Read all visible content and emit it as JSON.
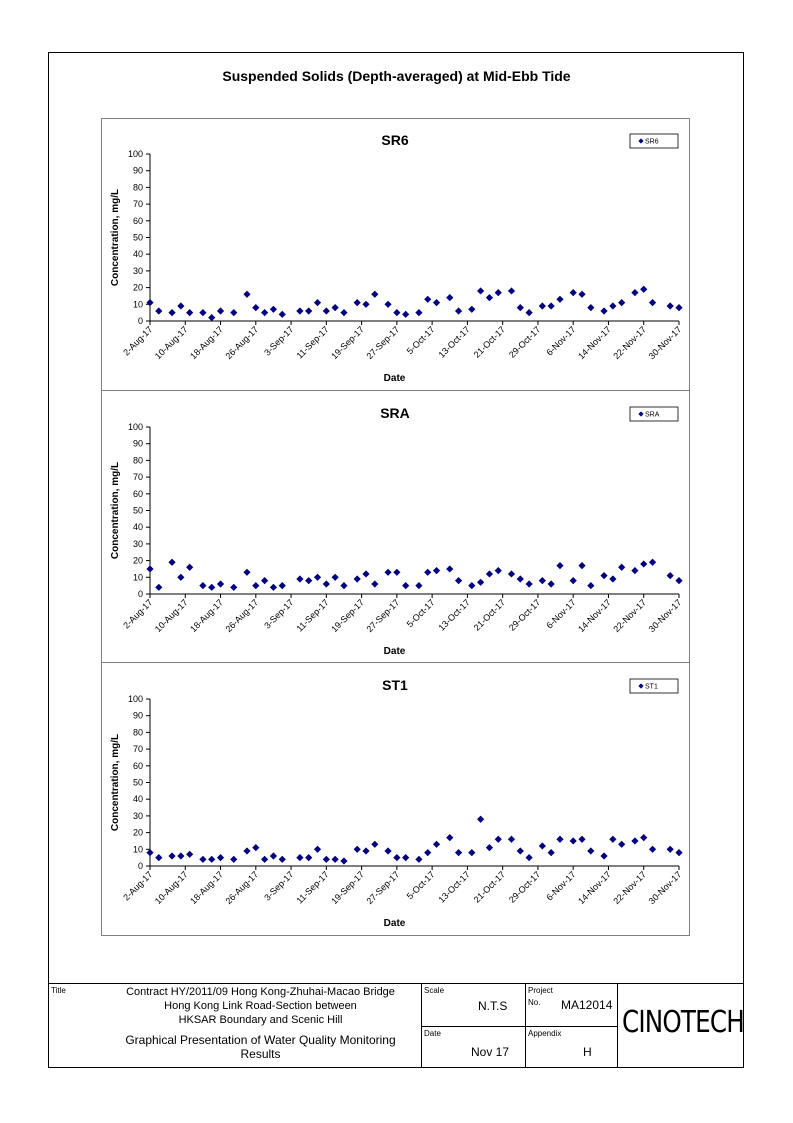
{
  "page_title": "Suspended Solids (Depth-averaged) at Mid-Ebb Tide",
  "footer": {
    "title_label": "Title",
    "title_lines": [
      "Contract HY/2011/09 Hong Kong-Zhuhai-Macao Bridge",
      "Hong Kong Link Road-Section between",
      "HKSAR Boundary and Scenic Hill"
    ],
    "subtitle_lines": [
      "Graphical Presentation of Water Quality Monitoring",
      "Results"
    ],
    "scale_label": "Scale",
    "scale_value": "N.T.S",
    "project_label": "Project",
    "no_label": "No.",
    "project_no": "MA12014",
    "date_label": "Date",
    "date_value": "Nov 17",
    "appendix_label": "Appendix",
    "appendix_value": "H",
    "logo_text": "CINOTECH"
  },
  "chart_data": [
    {
      "type": "scatter",
      "title": "SR6",
      "xlabel": "Date",
      "ylabel": "Concentration, mg/L",
      "ylim": [
        0,
        100
      ],
      "yticks": [
        0,
        10,
        20,
        30,
        40,
        50,
        60,
        70,
        80,
        90,
        100
      ],
      "xlim": [
        "2-Aug-17",
        "30-Nov-17"
      ],
      "xticks": [
        "2-Aug-17",
        "10-Aug-17",
        "18-Aug-17",
        "26-Aug-17",
        "3-Sep-17",
        "11-Sep-17",
        "19-Sep-17",
        "27-Sep-17",
        "5-Oct-17",
        "13-Oct-17",
        "21-Oct-17",
        "29-Oct-17",
        "6-Nov-17",
        "14-Nov-17",
        "22-Nov-17",
        "30-Nov-17"
      ],
      "legend_position": "top-right",
      "color": "#000080",
      "series": [
        {
          "name": "SR6",
          "points": [
            [
              "2-Aug-17",
              11
            ],
            [
              "4-Aug-17",
              6
            ],
            [
              "7-Aug-17",
              5
            ],
            [
              "9-Aug-17",
              9
            ],
            [
              "11-Aug-17",
              5
            ],
            [
              "14-Aug-17",
              5
            ],
            [
              "16-Aug-17",
              2
            ],
            [
              "18-Aug-17",
              6
            ],
            [
              "21-Aug-17",
              5
            ],
            [
              "24-Aug-17",
              16
            ],
            [
              "26-Aug-17",
              8
            ],
            [
              "28-Aug-17",
              5
            ],
            [
              "30-Aug-17",
              7
            ],
            [
              "1-Sep-17",
              4
            ],
            [
              "5-Sep-17",
              6
            ],
            [
              "7-Sep-17",
              6
            ],
            [
              "9-Sep-17",
              11
            ],
            [
              "11-Sep-17",
              6
            ],
            [
              "13-Sep-17",
              8
            ],
            [
              "15-Sep-17",
              5
            ],
            [
              "18-Sep-17",
              11
            ],
            [
              "20-Sep-17",
              10
            ],
            [
              "22-Sep-17",
              16
            ],
            [
              "25-Sep-17",
              10
            ],
            [
              "27-Sep-17",
              5
            ],
            [
              "29-Sep-17",
              4
            ],
            [
              "2-Oct-17",
              5
            ],
            [
              "4-Oct-17",
              13
            ],
            [
              "6-Oct-17",
              11
            ],
            [
              "9-Oct-17",
              14
            ],
            [
              "11-Oct-17",
              6
            ],
            [
              "14-Oct-17",
              7
            ],
            [
              "16-Oct-17",
              18
            ],
            [
              "18-Oct-17",
              14
            ],
            [
              "20-Oct-17",
              17
            ],
            [
              "23-Oct-17",
              18
            ],
            [
              "25-Oct-17",
              8
            ],
            [
              "27-Oct-17",
              5
            ],
            [
              "30-Oct-17",
              9
            ],
            [
              "1-Nov-17",
              9
            ],
            [
              "3-Nov-17",
              13
            ],
            [
              "6-Nov-17",
              17
            ],
            [
              "8-Nov-17",
              16
            ],
            [
              "10-Nov-17",
              8
            ],
            [
              "13-Nov-17",
              6
            ],
            [
              "15-Nov-17",
              9
            ],
            [
              "17-Nov-17",
              11
            ],
            [
              "20-Nov-17",
              17
            ],
            [
              "22-Nov-17",
              19
            ],
            [
              "24-Nov-17",
              11
            ],
            [
              "28-Nov-17",
              9
            ],
            [
              "30-Nov-17",
              8
            ]
          ]
        }
      ]
    },
    {
      "type": "scatter",
      "title": "SRA",
      "xlabel": "Date",
      "ylabel": "Concentration, mg/L",
      "ylim": [
        0,
        100
      ],
      "yticks": [
        0,
        10,
        20,
        30,
        40,
        50,
        60,
        70,
        80,
        90,
        100
      ],
      "xlim": [
        "2-Aug-17",
        "30-Nov-17"
      ],
      "xticks": [
        "2-Aug-17",
        "10-Aug-17",
        "18-Aug-17",
        "26-Aug-17",
        "3-Sep-17",
        "11-Sep-17",
        "19-Sep-17",
        "27-Sep-17",
        "5-Oct-17",
        "13-Oct-17",
        "21-Oct-17",
        "29-Oct-17",
        "6-Nov-17",
        "14-Nov-17",
        "22-Nov-17",
        "30-Nov-17"
      ],
      "legend_position": "top-right",
      "color": "#000080",
      "series": [
        {
          "name": "SRA",
          "points": [
            [
              "2-Aug-17",
              15
            ],
            [
              "4-Aug-17",
              4
            ],
            [
              "7-Aug-17",
              19
            ],
            [
              "9-Aug-17",
              10
            ],
            [
              "11-Aug-17",
              16
            ],
            [
              "14-Aug-17",
              5
            ],
            [
              "16-Aug-17",
              4
            ],
            [
              "18-Aug-17",
              6
            ],
            [
              "21-Aug-17",
              4
            ],
            [
              "24-Aug-17",
              13
            ],
            [
              "26-Aug-17",
              5
            ],
            [
              "28-Aug-17",
              8
            ],
            [
              "30-Aug-17",
              4
            ],
            [
              "1-Sep-17",
              5
            ],
            [
              "5-Sep-17",
              9
            ],
            [
              "7-Sep-17",
              8
            ],
            [
              "9-Sep-17",
              10
            ],
            [
              "11-Sep-17",
              6
            ],
            [
              "13-Sep-17",
              10
            ],
            [
              "15-Sep-17",
              5
            ],
            [
              "18-Sep-17",
              9
            ],
            [
              "20-Sep-17",
              12
            ],
            [
              "22-Sep-17",
              6
            ],
            [
              "25-Sep-17",
              13
            ],
            [
              "27-Sep-17",
              13
            ],
            [
              "29-Sep-17",
              5
            ],
            [
              "2-Oct-17",
              5
            ],
            [
              "4-Oct-17",
              13
            ],
            [
              "6-Oct-17",
              14
            ],
            [
              "9-Oct-17",
              15
            ],
            [
              "11-Oct-17",
              8
            ],
            [
              "14-Oct-17",
              5
            ],
            [
              "16-Oct-17",
              7
            ],
            [
              "18-Oct-17",
              12
            ],
            [
              "20-Oct-17",
              14
            ],
            [
              "23-Oct-17",
              12
            ],
            [
              "25-Oct-17",
              9
            ],
            [
              "27-Oct-17",
              6
            ],
            [
              "30-Oct-17",
              8
            ],
            [
              "1-Nov-17",
              6
            ],
            [
              "3-Nov-17",
              17
            ],
            [
              "6-Nov-17",
              8
            ],
            [
              "8-Nov-17",
              17
            ],
            [
              "10-Nov-17",
              5
            ],
            [
              "13-Nov-17",
              11
            ],
            [
              "15-Nov-17",
              9
            ],
            [
              "17-Nov-17",
              16
            ],
            [
              "20-Nov-17",
              14
            ],
            [
              "22-Nov-17",
              18
            ],
            [
              "24-Nov-17",
              19
            ],
            [
              "28-Nov-17",
              11
            ],
            [
              "30-Nov-17",
              8
            ]
          ]
        }
      ]
    },
    {
      "type": "scatter",
      "title": "ST1",
      "xlabel": "Date",
      "ylabel": "Concentration, mg/L",
      "ylim": [
        0,
        100
      ],
      "yticks": [
        0,
        10,
        20,
        30,
        40,
        50,
        60,
        70,
        80,
        90,
        100
      ],
      "xlim": [
        "2-Aug-17",
        "30-Nov-17"
      ],
      "xticks": [
        "2-Aug-17",
        "10-Aug-17",
        "18-Aug-17",
        "26-Aug-17",
        "3-Sep-17",
        "11-Sep-17",
        "19-Sep-17",
        "27-Sep-17",
        "5-Oct-17",
        "13-Oct-17",
        "21-Oct-17",
        "29-Oct-17",
        "6-Nov-17",
        "14-Nov-17",
        "22-Nov-17",
        "30-Nov-17"
      ],
      "legend_position": "top-right",
      "color": "#000080",
      "series": [
        {
          "name": "ST1",
          "points": [
            [
              "2-Aug-17",
              8
            ],
            [
              "4-Aug-17",
              5
            ],
            [
              "7-Aug-17",
              6
            ],
            [
              "9-Aug-17",
              6
            ],
            [
              "11-Aug-17",
              7
            ],
            [
              "14-Aug-17",
              4
            ],
            [
              "16-Aug-17",
              4
            ],
            [
              "18-Aug-17",
              5
            ],
            [
              "21-Aug-17",
              4
            ],
            [
              "24-Aug-17",
              9
            ],
            [
              "26-Aug-17",
              11
            ],
            [
              "28-Aug-17",
              4
            ],
            [
              "30-Aug-17",
              6
            ],
            [
              "1-Sep-17",
              4
            ],
            [
              "5-Sep-17",
              5
            ],
            [
              "7-Sep-17",
              5
            ],
            [
              "9-Sep-17",
              10
            ],
            [
              "11-Sep-17",
              4
            ],
            [
              "13-Sep-17",
              4
            ],
            [
              "15-Sep-17",
              3
            ],
            [
              "18-Sep-17",
              10
            ],
            [
              "20-Sep-17",
              9
            ],
            [
              "22-Sep-17",
              13
            ],
            [
              "25-Sep-17",
              9
            ],
            [
              "27-Sep-17",
              5
            ],
            [
              "29-Sep-17",
              5
            ],
            [
              "2-Oct-17",
              4
            ],
            [
              "4-Oct-17",
              8
            ],
            [
              "6-Oct-17",
              13
            ],
            [
              "9-Oct-17",
              17
            ],
            [
              "11-Oct-17",
              8
            ],
            [
              "14-Oct-17",
              8
            ],
            [
              "16-Oct-17",
              28
            ],
            [
              "18-Oct-17",
              11
            ],
            [
              "20-Oct-17",
              16
            ],
            [
              "23-Oct-17",
              16
            ],
            [
              "25-Oct-17",
              9
            ],
            [
              "27-Oct-17",
              5
            ],
            [
              "30-Oct-17",
              12
            ],
            [
              "1-Nov-17",
              8
            ],
            [
              "3-Nov-17",
              16
            ],
            [
              "6-Nov-17",
              15
            ],
            [
              "8-Nov-17",
              16
            ],
            [
              "10-Nov-17",
              9
            ],
            [
              "13-Nov-17",
              6
            ],
            [
              "15-Nov-17",
              16
            ],
            [
              "17-Nov-17",
              13
            ],
            [
              "20-Nov-17",
              15
            ],
            [
              "22-Nov-17",
              17
            ],
            [
              "24-Nov-17",
              10
            ],
            [
              "28-Nov-17",
              10
            ],
            [
              "30-Nov-17",
              8
            ]
          ]
        }
      ]
    }
  ]
}
